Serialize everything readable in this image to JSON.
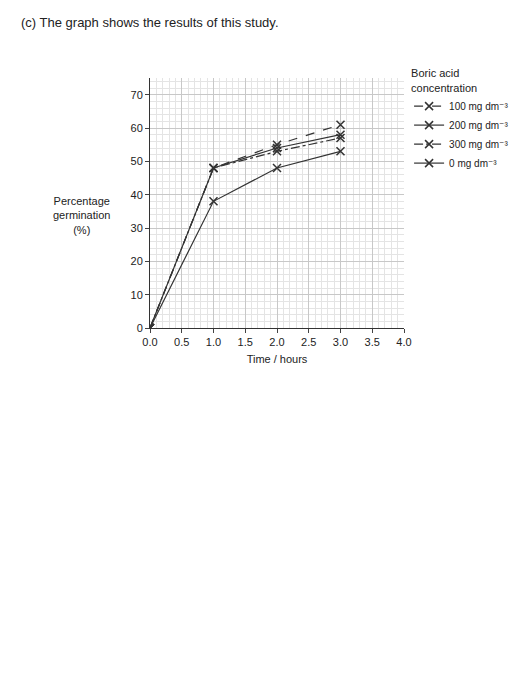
{
  "chart_data": {
    "type": "line",
    "title": "(c) The graph shows the results of this study.",
    "x_label": "Time / hours",
    "y_label": "Percentage germination (%)",
    "legend_title": "Boric acid concentration",
    "x": [
      0,
      1,
      2,
      3
    ],
    "series": [
      {
        "name": "100 mg dm⁻³",
        "color": "#333333",
        "marker": "x",
        "line_style": "dash",
        "values": [
          0,
          48,
          55,
          61
        ]
      },
      {
        "name": "200 mg dm⁻³",
        "color": "#333333",
        "marker": "x",
        "line_style": "solid",
        "values": [
          0,
          48,
          54,
          58
        ]
      },
      {
        "name": "300 mg dm⁻³",
        "color": "#333333",
        "marker": "x",
        "line_style": "dashdot",
        "values": [
          0,
          48,
          53,
          57
        ]
      },
      {
        "name": "0 mg dm⁻³",
        "color": "#333333",
        "marker": "x",
        "line_style": "solid",
        "values": [
          0,
          38,
          48,
          53
        ]
      }
    ],
    "xlim": [
      0,
      4
    ],
    "xticks": [
      {
        "value": 0,
        "label": "0.0"
      },
      0.5,
      {
        "value": 1,
        "label": "1.0"
      },
      1.5,
      {
        "value": 2,
        "label": "2.0"
      },
      2.5,
      {
        "value": 3,
        "label": "3.0"
      },
      3.5,
      {
        "value": 4,
        "label": "4.0"
      }
    ],
    "ylim": [
      0,
      75
    ],
    "yticks": [
      0,
      10,
      20,
      30,
      40,
      50,
      60,
      70
    ],
    "grid": true,
    "legend": "right"
  }
}
